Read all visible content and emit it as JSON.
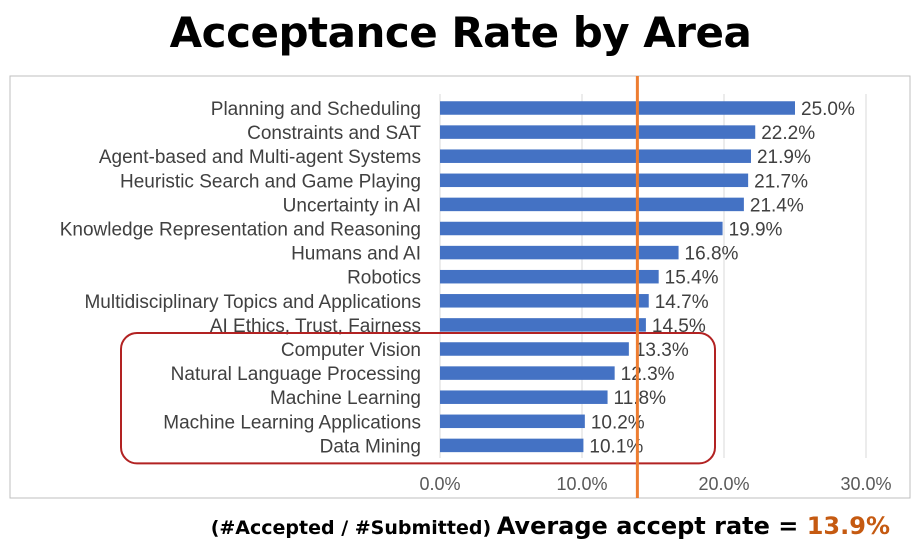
{
  "title": "Acceptance Rate by Area",
  "footer": {
    "note": "(#Accepted / #Submitted)",
    "label": "Average accept rate = ",
    "value": "13.9%"
  },
  "colors": {
    "bar": "#4472C4",
    "average_line": "#ED7D31",
    "highlight_box": "#B22222",
    "grid": "#D9D9D9",
    "average_text": "#C55A11"
  },
  "chart_data": {
    "type": "bar",
    "orientation": "horizontal",
    "title": "Acceptance Rate by Area",
    "xlabel": "",
    "ylabel": "",
    "categories": [
      "Planning and Scheduling",
      "Constraints and SAT",
      "Agent-based and Multi-agent Systems",
      "Heuristic Search and Game Playing",
      "Uncertainty in AI",
      "Knowledge Representation and Reasoning",
      "Humans and AI",
      "Robotics",
      "Multidisciplinary Topics and Applications",
      "AI Ethics, Trust, Fairness",
      "Computer Vision",
      "Natural Language Processing",
      "Machine Learning",
      "Machine Learning Applications",
      "Data Mining"
    ],
    "values": [
      25.0,
      22.2,
      21.9,
      21.7,
      21.4,
      19.9,
      16.8,
      15.4,
      14.7,
      14.5,
      13.3,
      12.3,
      11.8,
      10.2,
      10.1
    ],
    "data_labels": [
      "25.0%",
      "22.2%",
      "21.9%",
      "21.7%",
      "21.4%",
      "19.9%",
      "16.8%",
      "15.4%",
      "14.7%",
      "14.5%",
      "13.3%",
      "12.3%",
      "11.8%",
      "10.2%",
      "10.1%"
    ],
    "xlim": [
      0,
      30
    ],
    "xticks": [
      0,
      10,
      20,
      30
    ],
    "xtick_labels": [
      "0.0%",
      "10.0%",
      "20.0%",
      "30.0%"
    ],
    "grid": true,
    "average_line": 13.9,
    "highlighted_categories": [
      "Computer Vision",
      "Natural Language Processing",
      "Machine Learning",
      "Machine Learning Applications",
      "Data Mining"
    ]
  }
}
